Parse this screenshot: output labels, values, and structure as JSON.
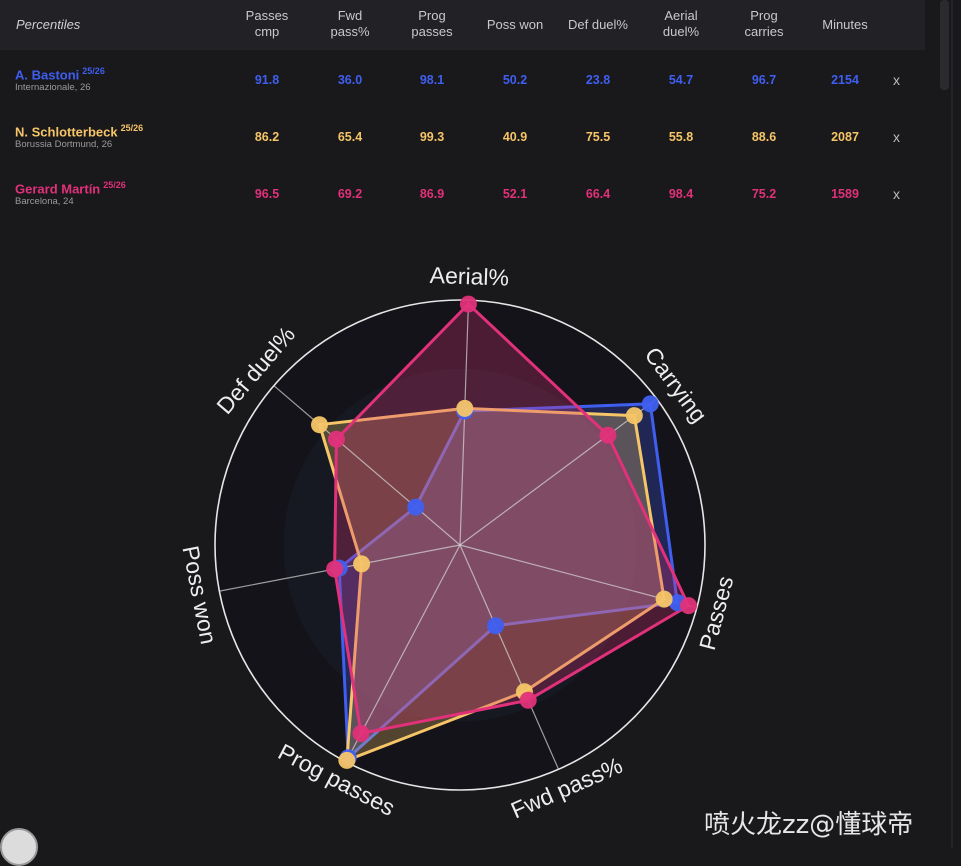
{
  "table": {
    "header_first": "Percentiles",
    "columns": [
      {
        "line1": "Passes",
        "line2": "cmp"
      },
      {
        "line1": "Fwd",
        "line2": "pass%"
      },
      {
        "line1": "Prog",
        "line2": "passes"
      },
      {
        "line1": "Poss won",
        "line2": ""
      },
      {
        "line1": "Def duel%",
        "line2": ""
      },
      {
        "line1": "Aerial",
        "line2": "duel%"
      },
      {
        "line1": "Prog",
        "line2": "carries"
      },
      {
        "line1": "Minutes",
        "line2": ""
      }
    ],
    "remove_label": "x",
    "players": [
      {
        "name": "A. Bastoni",
        "season": "25/26",
        "club": "Internazionale, 26",
        "color": "#3f5ff0",
        "values": [
          "91.8",
          "36.0",
          "98.1",
          "50.2",
          "23.8",
          "54.7",
          "96.7",
          "2154"
        ]
      },
      {
        "name": "N. Schlotterbeck",
        "season": "25/26",
        "club": "Borussia Dortmund, 26",
        "color": "#f5c567",
        "values": [
          "86.2",
          "65.4",
          "99.3",
          "40.9",
          "75.5",
          "55.8",
          "88.6",
          "2087"
        ]
      },
      {
        "name": "Gerard Martín",
        "season": "25/26",
        "club": "Barcelona, 24",
        "color": "#e0317a",
        "values": [
          "96.5",
          "69.2",
          "86.9",
          "52.1",
          "66.4",
          "98.4",
          "75.2",
          "1589"
        ]
      }
    ]
  },
  "chart_data": {
    "type": "radar",
    "axes": [
      "Aerial%",
      "Carrying",
      "Passes",
      "Fwd pass%",
      "Prog passes",
      "Poss won",
      "Def duel%"
    ],
    "range": [
      0,
      100
    ],
    "series": [
      {
        "name": "A. Bastoni",
        "color": "#3f5ff0",
        "values": [
          54.7,
          96.7,
          91.8,
          36.0,
          98.1,
          50.2,
          23.8
        ]
      },
      {
        "name": "N. Schlotterbeck",
        "color": "#f5c567",
        "values": [
          55.8,
          88.6,
          86.2,
          65.4,
          99.3,
          40.9,
          75.5
        ]
      },
      {
        "name": "Gerard Martín",
        "color": "#e0317a",
        "values": [
          98.4,
          75.2,
          96.5,
          69.2,
          86.9,
          52.1,
          66.4
        ]
      }
    ]
  },
  "watermark": "喷火龙zz@懂球帝"
}
